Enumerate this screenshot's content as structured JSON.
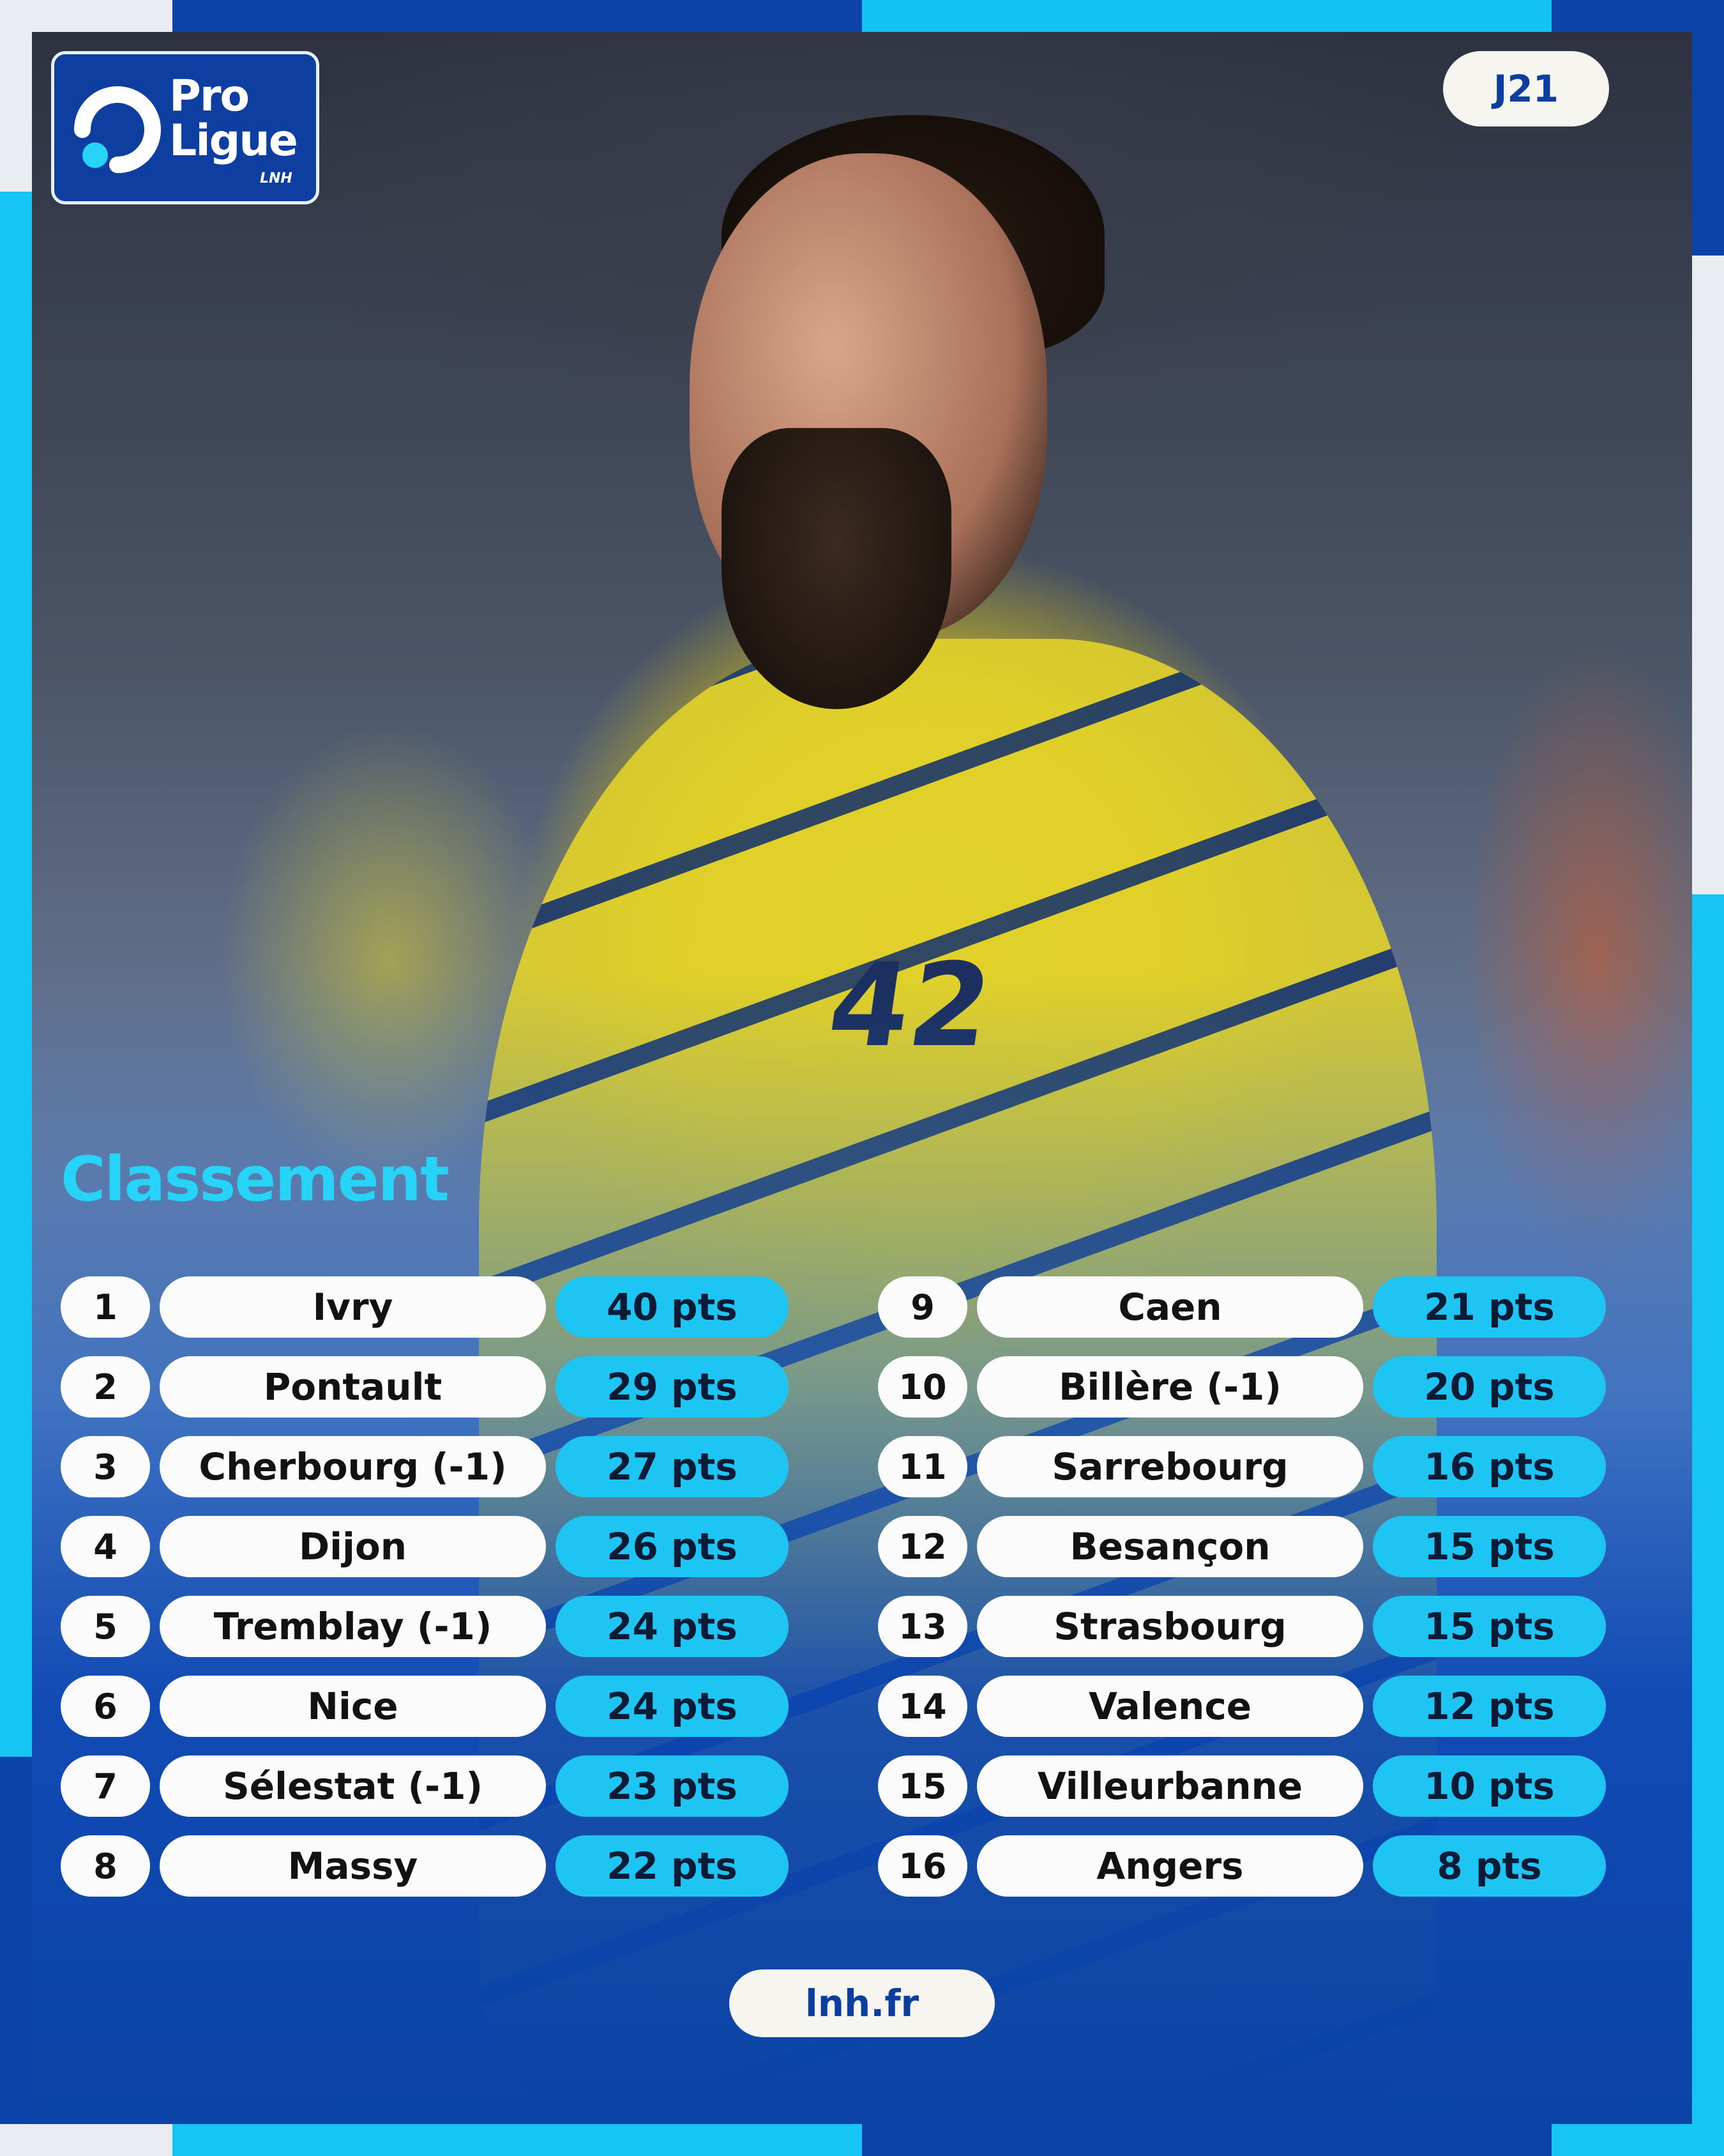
{
  "brand": {
    "logo_line1": "Pro",
    "logo_line2": "Ligue",
    "logo_sub": "LNH"
  },
  "round_badge": "J21",
  "section_title": "Classement",
  "photo": {
    "jersey_number": "42"
  },
  "standings": {
    "left": [
      {
        "rank": "1",
        "team": "Ivry",
        "points": "40 pts"
      },
      {
        "rank": "2",
        "team": "Pontault",
        "points": "29 pts"
      },
      {
        "rank": "3",
        "team": "Cherbourg (-1)",
        "points": "27 pts"
      },
      {
        "rank": "4",
        "team": "Dijon",
        "points": "26 pts"
      },
      {
        "rank": "5",
        "team": "Tremblay (-1)",
        "points": "24 pts"
      },
      {
        "rank": "6",
        "team": "Nice",
        "points": "24 pts"
      },
      {
        "rank": "7",
        "team": "Sélestat (-1)",
        "points": "23 pts"
      },
      {
        "rank": "8",
        "team": "Massy",
        "points": "22 pts"
      }
    ],
    "right": [
      {
        "rank": "9",
        "team": "Caen",
        "points": "21 pts"
      },
      {
        "rank": "10",
        "team": "Billère (-1)",
        "points": "20 pts"
      },
      {
        "rank": "11",
        "team": "Sarrebourg",
        "points": "16 pts"
      },
      {
        "rank": "12",
        "team": "Besançon",
        "points": "15 pts"
      },
      {
        "rank": "13",
        "team": "Strasbourg",
        "points": "15 pts"
      },
      {
        "rank": "14",
        "team": "Valence",
        "points": "12 pts"
      },
      {
        "rank": "15",
        "team": "Villeurbanne",
        "points": "10 pts"
      },
      {
        "rank": "16",
        "team": "Angers",
        "points": "8 pts"
      }
    ]
  },
  "footer": {
    "website": "lnh.fr"
  },
  "colors": {
    "navy": "#0c3ea0",
    "cyan": "#1fc5f2",
    "title_cyan": "#27d4f7",
    "pill_white": "#fbfbfb"
  }
}
